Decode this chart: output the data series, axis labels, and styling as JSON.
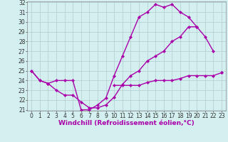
{
  "xlabel": "Windchill (Refroidissement éolien,°C)",
  "x": [
    0,
    1,
    2,
    3,
    4,
    5,
    6,
    7,
    8,
    9,
    10,
    11,
    12,
    13,
    14,
    15,
    16,
    17,
    18,
    19,
    20,
    21,
    22,
    23
  ],
  "line1": [
    25,
    24,
    23.7,
    24,
    24,
    24,
    21.0,
    21.0,
    21.5,
    22.2,
    24.5,
    26.5,
    28.5,
    30.5,
    31.0,
    31.8,
    31.5,
    31.8,
    31.0,
    30.5,
    29.5,
    null,
    null,
    24.8
  ],
  "line2": [
    25,
    24,
    23.7,
    23.0,
    22.5,
    22.5,
    21.8,
    21.2,
    21.2,
    21.5,
    22.3,
    23.6,
    24.5,
    25.0,
    26.0,
    26.5,
    27.0,
    28.0,
    28.5,
    29.5,
    29.5,
    28.5,
    27.0,
    null
  ],
  "line3": [
    null,
    null,
    null,
    null,
    null,
    null,
    null,
    null,
    null,
    null,
    23.5,
    23.5,
    23.5,
    23.5,
    23.8,
    24.0,
    24.0,
    24.0,
    24.2,
    24.5,
    24.5,
    24.5,
    24.5,
    24.8
  ],
  "bg_color": "#d4efef",
  "line_color": "#aa00aa",
  "grid_color": "#b0cccc",
  "ylim": [
    21,
    32
  ],
  "xlim": [
    -0.5,
    23.5
  ],
  "yticks": [
    21,
    22,
    23,
    24,
    25,
    26,
    27,
    28,
    29,
    30,
    31,
    32
  ],
  "xticks": [
    0,
    1,
    2,
    3,
    4,
    5,
    6,
    7,
    8,
    9,
    10,
    11,
    12,
    13,
    14,
    15,
    16,
    17,
    18,
    19,
    20,
    21,
    22,
    23
  ],
  "marker": "D",
  "markersize": 2.2,
  "linewidth": 1.0,
  "xlabel_fontsize": 6.5,
  "tick_fontsize": 5.5
}
